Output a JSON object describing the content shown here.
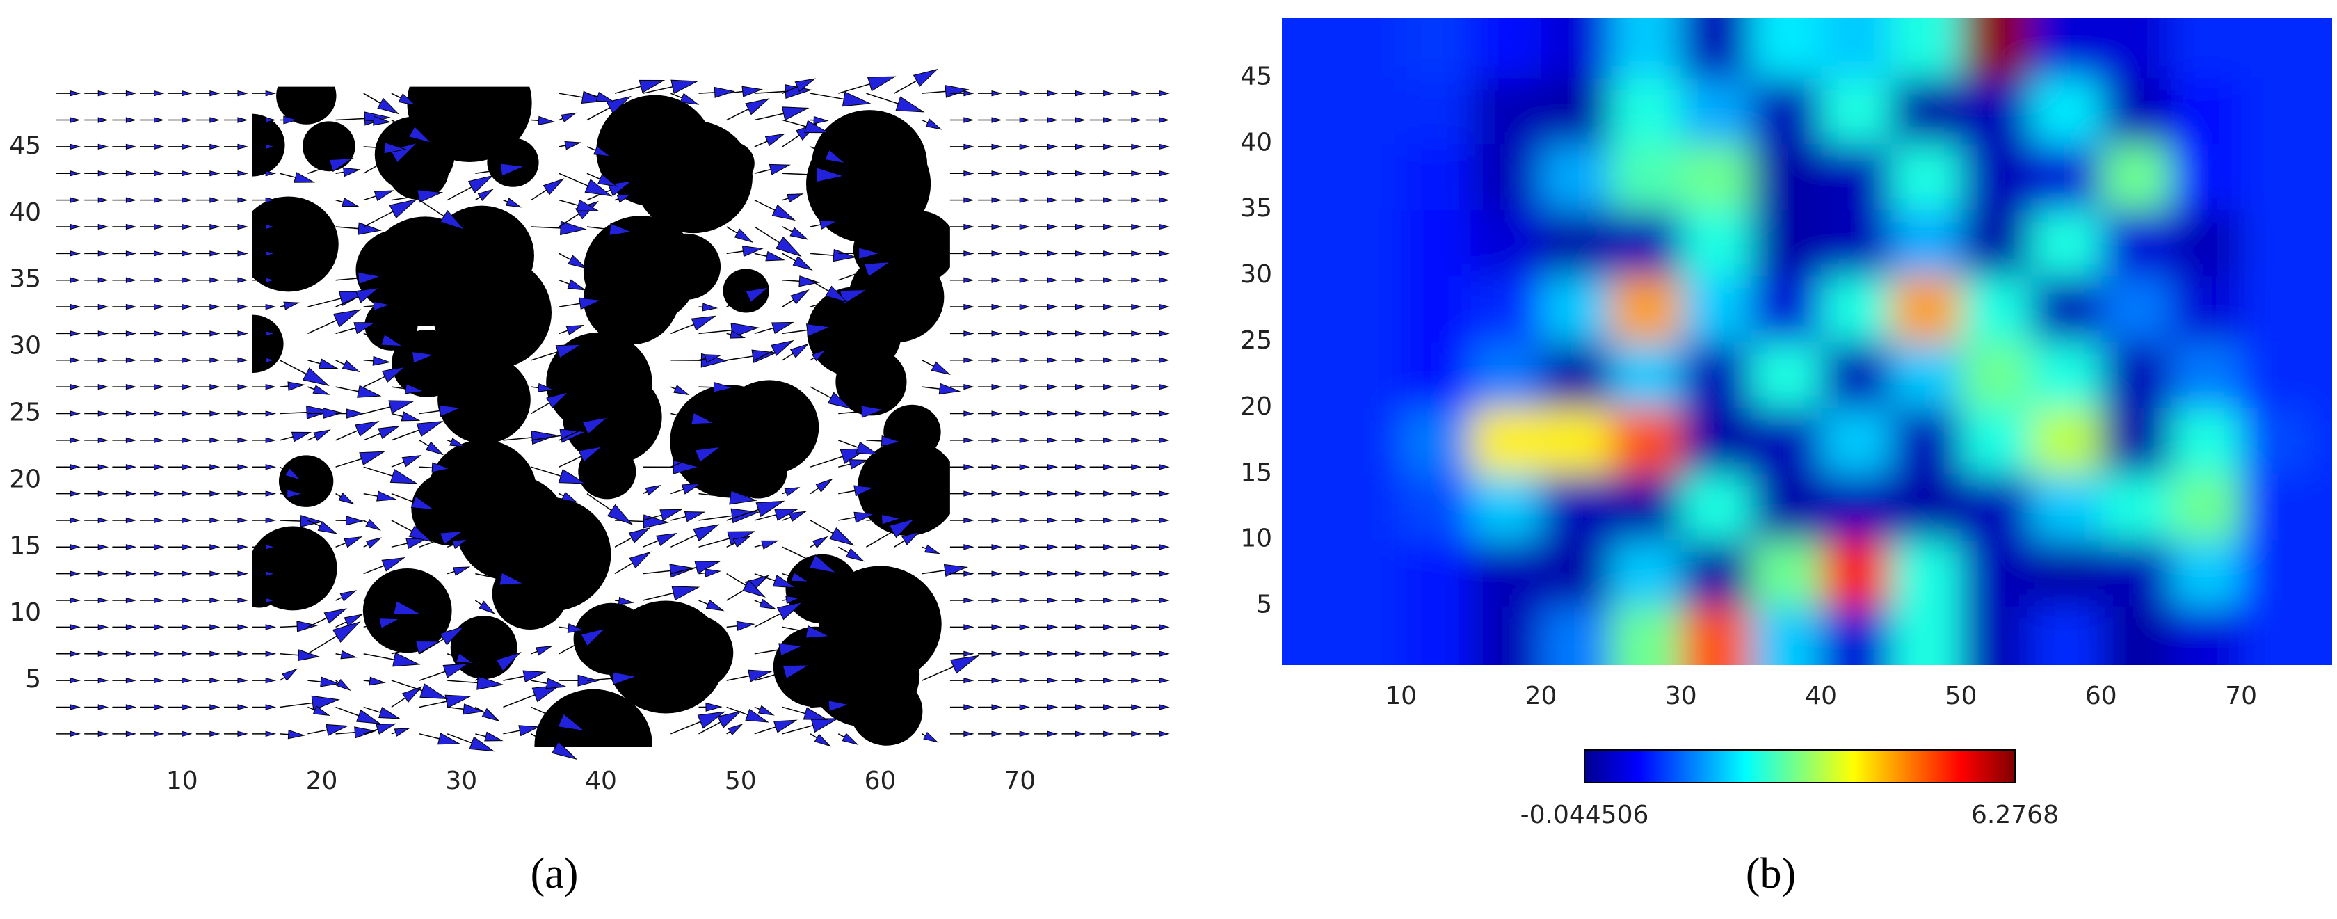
{
  "chart_data": [
    {
      "type": "quiver",
      "label": "(a)",
      "xlim": [
        0,
        80
      ],
      "ylim": [
        0,
        50
      ],
      "xticks": [
        10,
        20,
        30,
        40,
        50,
        60,
        70
      ],
      "yticks": [
        5,
        10,
        15,
        20,
        25,
        30,
        35,
        40,
        45
      ]
    },
    {
      "type": "heatmap",
      "label": "(b)",
      "xlim": [
        1.5,
        76.5
      ],
      "ylim": [
        0.5,
        49.5
      ],
      "xticks": [
        10,
        20,
        30,
        40,
        50,
        60,
        70
      ],
      "yticks": [
        5,
        10,
        15,
        20,
        25,
        30,
        35,
        40,
        45
      ],
      "colormap": "jet",
      "clim": [
        -0.044506,
        6.2768
      ],
      "colorbar_ticks": [
        -0.044506,
        6.2768
      ],
      "x": [
        2.5,
        7.5,
        12.5,
        17.5,
        22.5,
        27.5,
        32.5,
        37.5,
        42.5,
        47.5,
        52.5,
        57.5,
        62.5,
        67.5,
        72.5,
        77.5
      ],
      "y": [
        2.5,
        7.5,
        12.5,
        17.5,
        22.5,
        27.5,
        32.5,
        37.5,
        42.5,
        47.5
      ],
      "values": [
        [
          1.0,
          1.0,
          0.9,
          0.3,
          1.5,
          3.0,
          5.0,
          2.0,
          0.5,
          2.5,
          0.3,
          1.0,
          0.2,
          0.5,
          1.0,
          1.0
        ],
        [
          1.0,
          1.0,
          0.9,
          0.3,
          0.2,
          2.0,
          0.2,
          3.0,
          5.5,
          2.5,
          0.3,
          0.2,
          0.3,
          2.0,
          1.0,
          1.0
        ],
        [
          1.0,
          1.0,
          1.2,
          2.0,
          0.3,
          0.2,
          2.5,
          0.2,
          0.3,
          0.2,
          0.3,
          2.0,
          2.5,
          3.0,
          1.0,
          1.0
        ],
        [
          1.0,
          1.0,
          1.5,
          4.0,
          4.0,
          5.0,
          0.2,
          0.3,
          2.0,
          0.3,
          2.5,
          3.5,
          0.2,
          2.5,
          1.2,
          1.0
        ],
        [
          1.0,
          1.0,
          0.8,
          1.5,
          0.2,
          2.0,
          0.3,
          2.5,
          0.3,
          2.0,
          3.0,
          2.5,
          0.3,
          1.5,
          1.0,
          1.0
        ],
        [
          1.0,
          1.0,
          0.8,
          1.0,
          2.0,
          4.5,
          2.0,
          0.5,
          2.5,
          4.5,
          2.5,
          0.3,
          1.5,
          0.5,
          1.0,
          1.0
        ],
        [
          1.0,
          1.0,
          0.8,
          0.5,
          0.2,
          0.3,
          2.5,
          0.2,
          0.3,
          1.8,
          0.2,
          2.5,
          0.5,
          0.3,
          1.0,
          1.0
        ],
        [
          1.0,
          1.0,
          0.9,
          0.3,
          1.8,
          2.8,
          3.0,
          0.2,
          0.3,
          2.5,
          0.3,
          0.5,
          3.0,
          0.8,
          1.0,
          1.0
        ],
        [
          1.0,
          1.0,
          1.0,
          0.3,
          0.2,
          2.5,
          1.8,
          0.3,
          2.5,
          0.2,
          0.3,
          2.2,
          0.3,
          0.8,
          1.0,
          1.0
        ],
        [
          1.0,
          1.0,
          1.1,
          0.8,
          0.5,
          2.0,
          0.3,
          2.2,
          2.0,
          2.5,
          6.2,
          0.5,
          0.5,
          1.0,
          1.0,
          1.0
        ]
      ]
    }
  ]
}
